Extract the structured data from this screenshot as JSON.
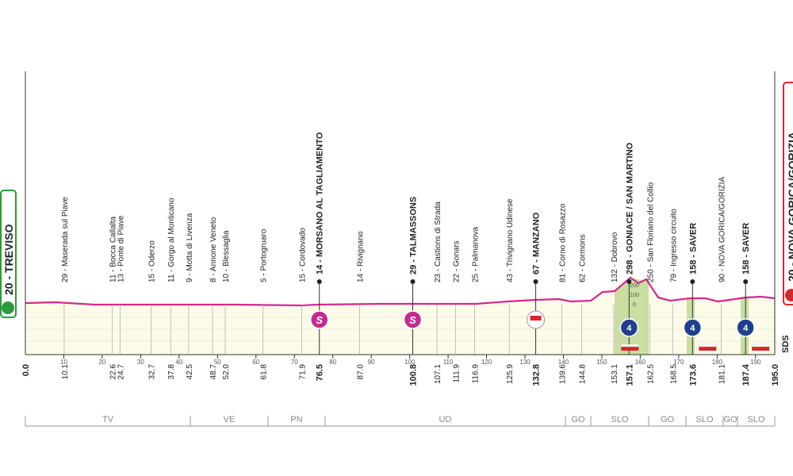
{
  "start": {
    "label": "20 - TREVISO",
    "km": "0.0"
  },
  "finish": {
    "label": "20 - NOVA GORICA/GORIZIA",
    "km": "195.0"
  },
  "waypoints": [
    {
      "label": "29 - Maserada sul Piave",
      "km": "10.1"
    },
    {
      "label": "11 - Bocca Callalta",
      "km": "22.6"
    },
    {
      "label": "13 - Ponte di Piave",
      "km": "24.7"
    },
    {
      "label": "15 - Oderzo",
      "km": "32.7"
    },
    {
      "label": "11 - Gorgo al Monticano",
      "km": "37.8"
    },
    {
      "label": "9 - Motta di Livenza",
      "km": "42.5"
    },
    {
      "label": "8 - Annone Veneto",
      "km": "48.7"
    },
    {
      "label": "10 - Blessaglia",
      "km": "52.0"
    },
    {
      "label": "5 - Portogruaro",
      "km": "61.8"
    },
    {
      "label": "15 - Cordovado",
      "km": "71.9"
    },
    {
      "label": "14 - MORSANO AL TAGLIAMENTO",
      "km": "76.5",
      "bold": true
    },
    {
      "label": "14 - Rivignano",
      "km": "87.0"
    },
    {
      "label": "29 - TALMASSONS",
      "km": "100.8",
      "bold": true
    },
    {
      "label": "23 - Castions di Strada",
      "km": "107.1"
    },
    {
      "label": "22 - Gonars",
      "km": "111.9"
    },
    {
      "label": "25 - Palmanova",
      "km": "116.9"
    },
    {
      "label": "43 - Trivignano Udinese",
      "km": "125.9"
    },
    {
      "label": "67 - MANZANO",
      "km": "132.8",
      "bold": true
    },
    {
      "label": "81 - Corno di Rosazzo",
      "km": "139.6"
    },
    {
      "label": "62 - Cormons",
      "km": "144.8"
    },
    {
      "label": "132 - Dobrovo",
      "km": "153.1"
    },
    {
      "label": "298 - GONIACE / SAN MARTINO",
      "km": "157.1",
      "bold": true
    },
    {
      "label": "250 - San Floriano del Collio",
      "km": "162.5"
    },
    {
      "label": "79 - Ingresso circuito",
      "km": "168.5"
    },
    {
      "label": "158 - SAVER",
      "km": "173.6",
      "bold": true
    },
    {
      "label": "90 - NOVA GORICA/GORIZIA",
      "km": "181.1"
    },
    {
      "label": "158 - SAVER",
      "km": "187.4",
      "bold": true
    }
  ],
  "axis_ticks": [
    "10",
    "20",
    "30",
    "40",
    "50",
    "60",
    "70",
    "80",
    "90",
    "100",
    "110",
    "120",
    "130",
    "140",
    "150",
    "160",
    "170",
    "180",
    "190"
  ],
  "markers": {
    "sprint": "S",
    "kom": "4"
  },
  "climb_scale": [
    "200",
    "100",
    "0"
  ],
  "regions": [
    "TV",
    "VE",
    "PN",
    "UD",
    "GO",
    "SLO",
    "GO",
    "SLO",
    "GO",
    "SLO"
  ],
  "brand": "SDS"
}
